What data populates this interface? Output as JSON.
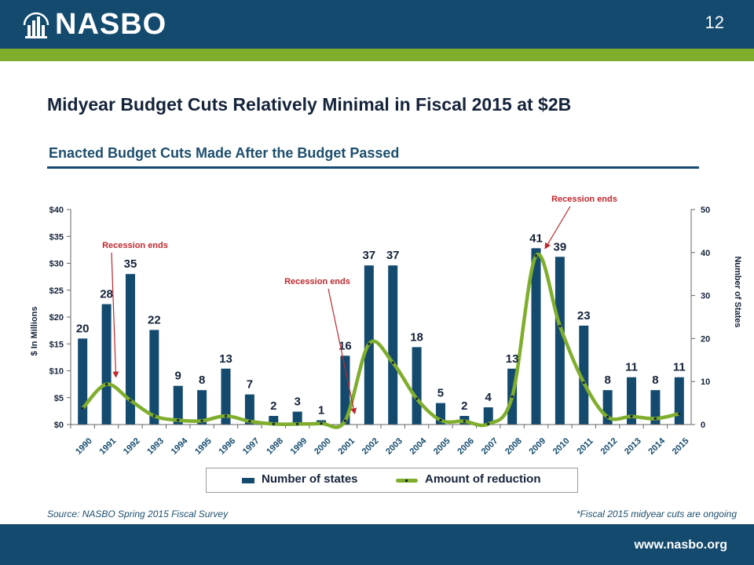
{
  "header": {
    "logo_text": "NASBO",
    "slide_number": "12"
  },
  "title": "Midyear Budget Cuts Relatively Minimal in Fiscal 2015 at $2B",
  "subtitle": "Enacted Budget Cuts Made After the Budget Passed",
  "footer": {
    "source": "Source: NASBO Spring 2015 Fiscal Survey",
    "note": "*Fiscal 2015 midyear cuts are ongoing",
    "url": "www.nasbo.org"
  },
  "colors": {
    "navy": "#134a6e",
    "green": "#7fae2d",
    "annotation_red": "#c0272d"
  },
  "chart_data": {
    "type": "bar",
    "categories": [
      "1990",
      "1991",
      "1992",
      "1993",
      "1994",
      "1995",
      "1996",
      "1997",
      "1998",
      "1999",
      "2000",
      "2001",
      "2002",
      "2003",
      "2004",
      "2005",
      "2006",
      "2007",
      "2008",
      "2009",
      "2010",
      "2011",
      "2012",
      "2013",
      "2014",
      "2015"
    ],
    "series": [
      {
        "name": "Number of states",
        "type": "bar",
        "axis": "right",
        "values": [
          20,
          28,
          35,
          22,
          9,
          8,
          13,
          7,
          2,
          3,
          1,
          16,
          37,
          37,
          18,
          5,
          2,
          4,
          13,
          41,
          39,
          23,
          8,
          11,
          8,
          11
        ],
        "color": "#134a6e"
      },
      {
        "name": "Amount of reduction",
        "type": "line",
        "axis": "left",
        "values": [
          3,
          7.5,
          4.5,
          1.6,
          0.8,
          0.7,
          1.6,
          0.6,
          0.1,
          0.1,
          0.2,
          0.7,
          15,
          11.5,
          4.8,
          0.8,
          0.6,
          0.1,
          5.2,
          31.4,
          18.3,
          7.8,
          1.4,
          1.5,
          1.1,
          2
        ],
        "color": "#7fae2d"
      }
    ],
    "ylabel_left": "$ In Millions",
    "ylabel_right": "Number of States",
    "ylim_left": [
      0,
      40
    ],
    "ylim_right": [
      0,
      50
    ],
    "left_ticks": [
      "$0",
      "$5",
      "$10",
      "$15",
      "$20",
      "$25",
      "$30",
      "$35",
      "$40"
    ],
    "right_ticks": [
      "0",
      "10",
      "20",
      "30",
      "40",
      "50"
    ],
    "annotations": [
      {
        "text": "Recession ends",
        "year": "1991"
      },
      {
        "text": "Recession ends",
        "year": "2001"
      },
      {
        "text": "Recession ends",
        "year": "2009"
      }
    ],
    "legend_position": "bottom",
    "grid": false
  }
}
